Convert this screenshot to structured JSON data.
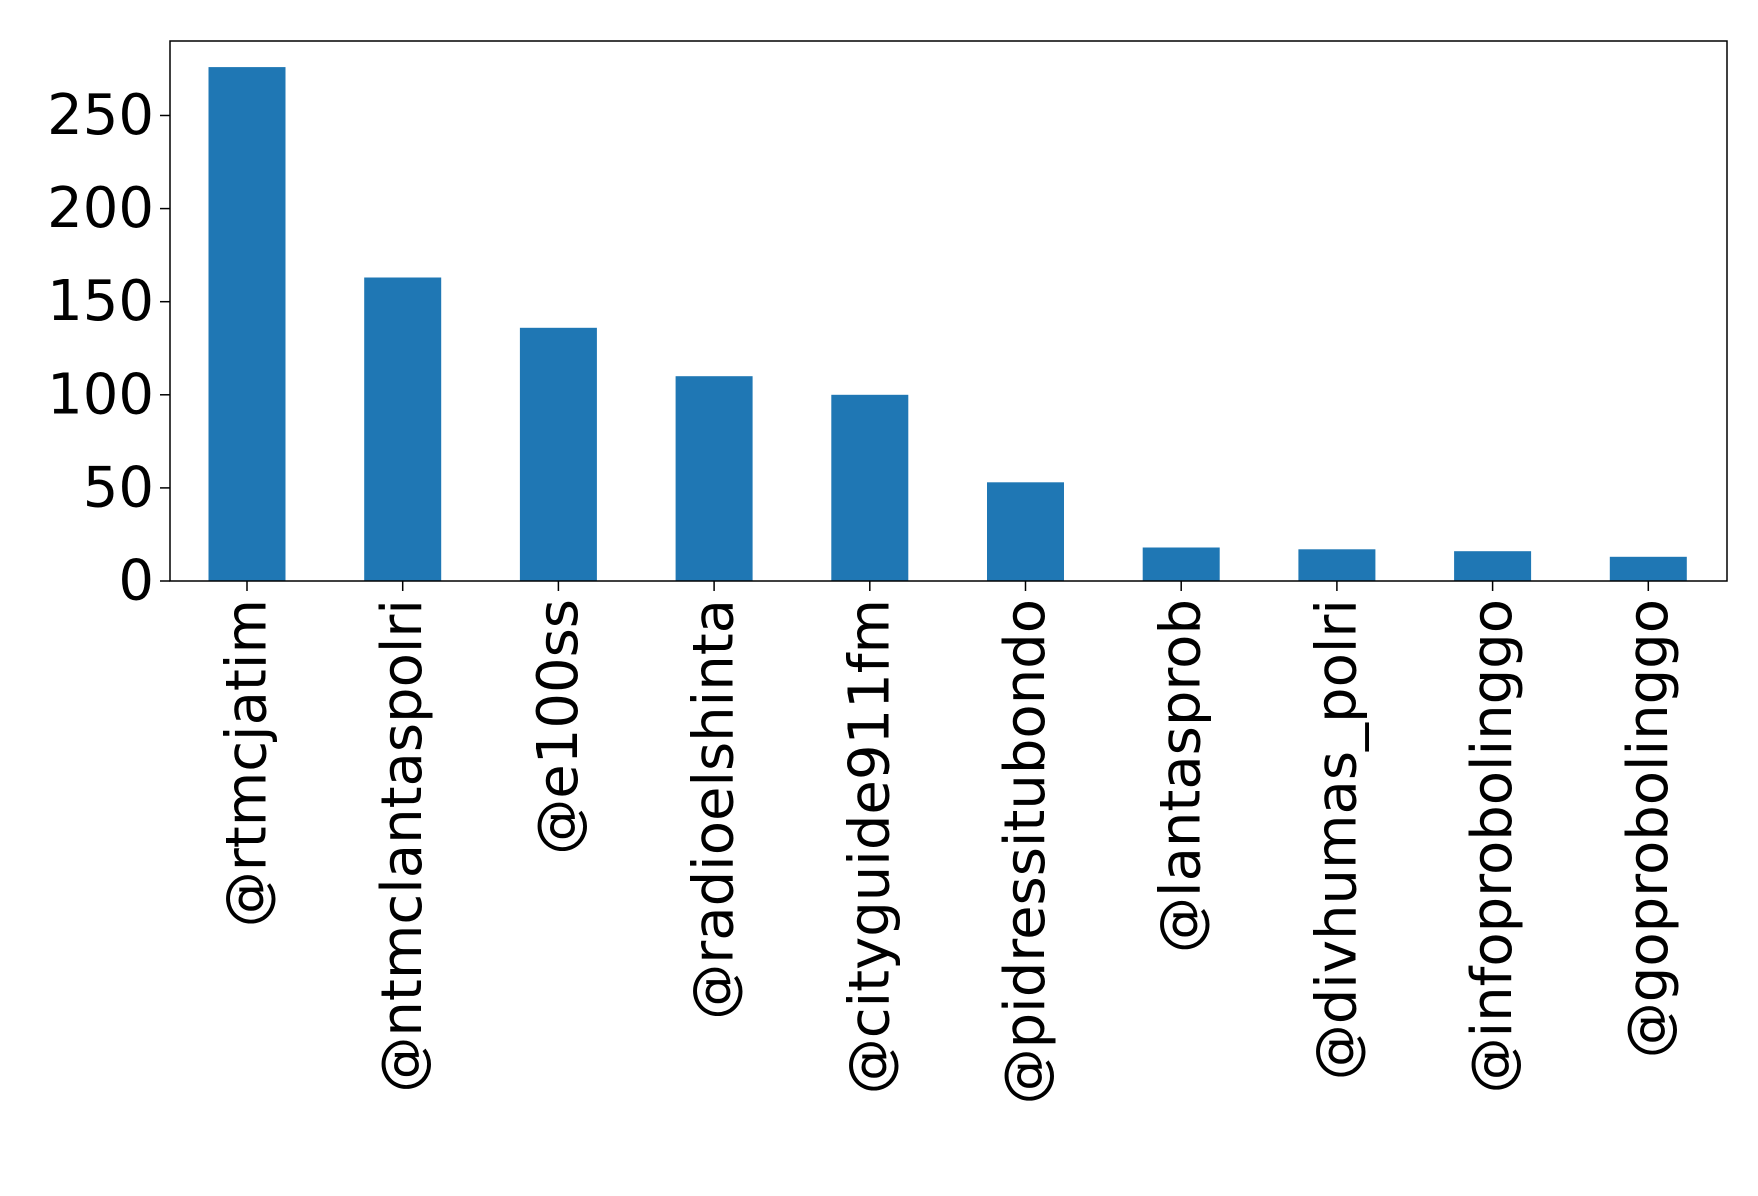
{
  "chart_data": {
    "type": "bar",
    "title": "",
    "xlabel": "",
    "ylabel": "",
    "categories": [
      "@rtmcjatim",
      "@ntmclantaspolri",
      "@e100ss",
      "@radioelshinta",
      "@cityguide911fm",
      "@pidressitubondo",
      "@lantasprob",
      "@divhumas_polri",
      "@infoprobolinggo",
      "@goprobolinggo"
    ],
    "values": [
      276,
      163,
      136,
      110,
      100,
      53,
      18,
      17,
      16,
      13
    ],
    "ylim": [
      0,
      290
    ],
    "yticks": [
      0,
      50,
      100,
      150,
      200,
      250
    ],
    "grid": false,
    "legend": "none",
    "bar_color": "#1f77b4"
  }
}
